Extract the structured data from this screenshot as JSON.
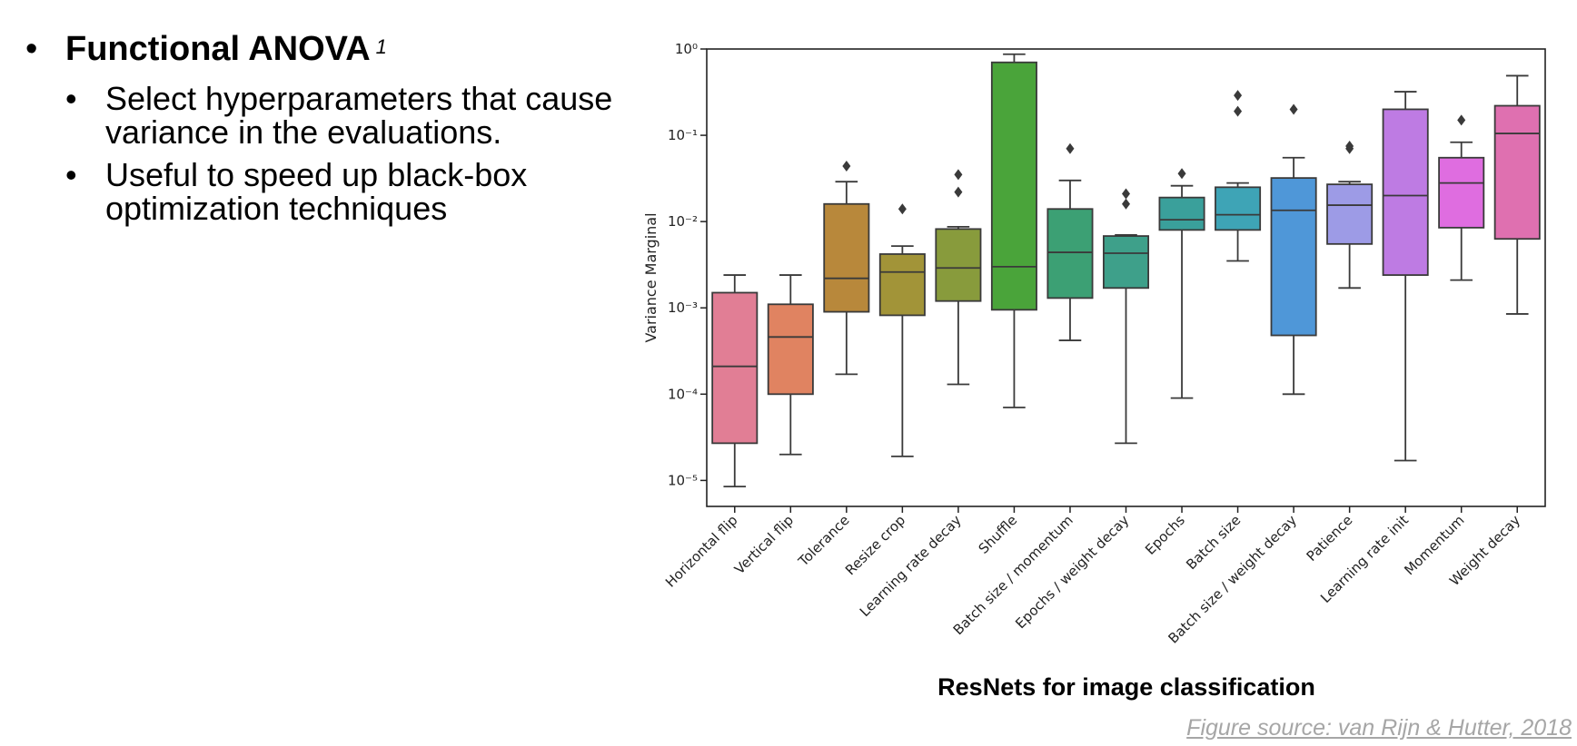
{
  "slide": {
    "heading": "Functional ANOVA",
    "heading_sup": "1",
    "bullets": [
      "Select hyperparameters that cause variance in the evaluations.",
      "Useful to speed up black-box optimization techniques"
    ],
    "figure_title": "ResNets for image classification",
    "figure_source": "Figure source: van Rijn & Hutter, 2018"
  },
  "chart_data": {
    "type": "box",
    "title": "",
    "xlabel": "",
    "ylabel": "Variance Marginal",
    "yscale": "log",
    "ylim": [
      5e-06,
      1
    ],
    "yticks": [
      {
        "value": 1,
        "label": "10⁰"
      },
      {
        "value": 0.1,
        "label": "10⁻¹"
      },
      {
        "value": 0.01,
        "label": "10⁻²"
      },
      {
        "value": 0.001,
        "label": "10⁻³"
      },
      {
        "value": 0.0001,
        "label": "10⁻⁴"
      },
      {
        "value": 1e-05,
        "label": "10⁻⁵"
      }
    ],
    "grid": false,
    "categories": [
      {
        "name": "Horizontal flip",
        "color": "#e17e95",
        "whislo": 8.5e-06,
        "q1": 2.7e-05,
        "median": 0.00021,
        "q3": 0.0015,
        "whishi": 0.0024,
        "outliers": []
      },
      {
        "name": "Vertical flip",
        "color": "#e08361",
        "whislo": 2e-05,
        "q1": 0.0001,
        "median": 0.00046,
        "q3": 0.0011,
        "whishi": 0.0024,
        "outliers": []
      },
      {
        "name": "Tolerance",
        "color": "#b8883b",
        "whislo": 0.00017,
        "q1": 0.0009,
        "median": 0.0022,
        "q3": 0.016,
        "whishi": 0.029,
        "outliers": [
          0.044
        ]
      },
      {
        "name": "Resize crop",
        "color": "#a29438",
        "whislo": 1.9e-05,
        "q1": 0.00082,
        "median": 0.0026,
        "q3": 0.0042,
        "whishi": 0.0052,
        "outliers": [
          0.014
        ]
      },
      {
        "name": "Learning rate decay",
        "color": "#889b3c",
        "whislo": 0.00013,
        "q1": 0.0012,
        "median": 0.0029,
        "q3": 0.0082,
        "whishi": 0.0087,
        "outliers": [
          0.022,
          0.035
        ]
      },
      {
        "name": "Shuffle",
        "color": "#4aa43a",
        "whislo": 7e-05,
        "q1": 0.00095,
        "median": 0.003,
        "q3": 0.7,
        "whishi": 0.87,
        "outliers": []
      },
      {
        "name": "Batch size / momentum",
        "color": "#3ca074",
        "whislo": 0.00042,
        "q1": 0.0013,
        "median": 0.0044,
        "q3": 0.014,
        "whishi": 0.03,
        "outliers": [
          0.07
        ]
      },
      {
        "name": "Epochs / weight decay",
        "color": "#3ea08a",
        "whislo": 2.7e-05,
        "q1": 0.0017,
        "median": 0.0043,
        "q3": 0.0068,
        "whishi": 0.007,
        "outliers": [
          0.016,
          0.021
        ]
      },
      {
        "name": "Epochs",
        "color": "#3aa09b",
        "whislo": 9e-05,
        "q1": 0.008,
        "median": 0.0105,
        "q3": 0.019,
        "whishi": 0.026,
        "outliers": [
          0.036
        ]
      },
      {
        "name": "Batch size",
        "color": "#3ea4b6",
        "whislo": 0.0035,
        "q1": 0.008,
        "median": 0.012,
        "q3": 0.025,
        "whishi": 0.028,
        "outliers": [
          0.19,
          0.29
        ]
      },
      {
        "name": "Batch size / weight decay",
        "color": "#4f97d8",
        "whislo": 0.0001,
        "q1": 0.00048,
        "median": 0.0135,
        "q3": 0.032,
        "whishi": 0.055,
        "outliers": [
          0.2
        ]
      },
      {
        "name": "Patience",
        "color": "#9d9be6",
        "whislo": 0.0017,
        "q1": 0.0055,
        "median": 0.0155,
        "q3": 0.027,
        "whishi": 0.029,
        "outliers": [
          0.07,
          0.075
        ]
      },
      {
        "name": "Learning rate init",
        "color": "#be7be3",
        "whislo": 1.7e-05,
        "q1": 0.0024,
        "median": 0.02,
        "q3": 0.2,
        "whishi": 0.32,
        "outliers": []
      },
      {
        "name": "Momentum",
        "color": "#df6de0",
        "whislo": 0.0021,
        "q1": 0.0085,
        "median": 0.028,
        "q3": 0.055,
        "whishi": 0.083,
        "outliers": [
          0.15
        ]
      },
      {
        "name": "Weight decay",
        "color": "#df70b0",
        "whislo": 0.00085,
        "q1": 0.0063,
        "median": 0.105,
        "q3": 0.22,
        "whishi": 0.49,
        "outliers": []
      }
    ]
  }
}
